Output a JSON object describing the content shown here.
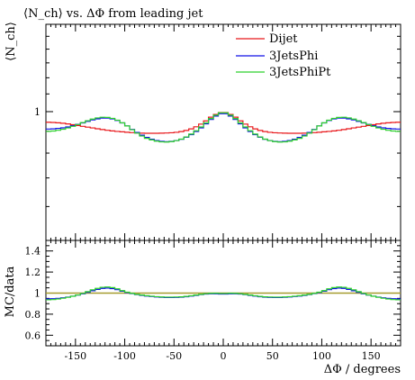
{
  "chart_data": [
    {
      "type": "line",
      "panel": "main",
      "title": "⟨N_ch⟩ vs. ΔΦ from leading jet",
      "ylabel": "⟨N_ch⟩",
      "ylim": [
        0.5,
        1.6
      ],
      "yscale": "log",
      "yticks": [
        1
      ],
      "ytick_labels": [
        "1"
      ],
      "xlim": [
        -180,
        180
      ],
      "legend_position": "top-right",
      "x": [
        -180,
        -170,
        -160,
        -150,
        -140,
        -130,
        -120,
        -110,
        -100,
        -90,
        -80,
        -70,
        -60,
        -50,
        -40,
        -30,
        -20,
        -10,
        0,
        10,
        20,
        30,
        40,
        50,
        60,
        70,
        80,
        90,
        100,
        110,
        120,
        130,
        140,
        150,
        160,
        170,
        180
      ],
      "series": [
        {
          "name": "Dijet",
          "color": "#e8171a",
          "values": [
            0.945,
            0.943,
            0.938,
            0.93,
            0.922,
            0.914,
            0.906,
            0.9,
            0.896,
            0.892,
            0.89,
            0.89,
            0.891,
            0.893,
            0.9,
            0.915,
            0.942,
            0.98,
            1.0,
            0.98,
            0.942,
            0.915,
            0.9,
            0.893,
            0.891,
            0.89,
            0.89,
            0.892,
            0.896,
            0.9,
            0.906,
            0.914,
            0.922,
            0.93,
            0.938,
            0.943,
            0.945
          ]
        },
        {
          "name": "3JetsPhi",
          "color": "#1212e8",
          "values": [
            0.91,
            0.912,
            0.918,
            0.93,
            0.945,
            0.96,
            0.968,
            0.96,
            0.935,
            0.9,
            0.875,
            0.858,
            0.85,
            0.853,
            0.865,
            0.89,
            0.925,
            0.97,
            0.995,
            0.97,
            0.925,
            0.89,
            0.865,
            0.853,
            0.85,
            0.858,
            0.875,
            0.9,
            0.935,
            0.96,
            0.968,
            0.96,
            0.945,
            0.93,
            0.918,
            0.912,
            0.91
          ]
        },
        {
          "name": "3JetsPhiPt",
          "color": "#2fd02f",
          "values": [
            0.898,
            0.902,
            0.912,
            0.928,
            0.948,
            0.965,
            0.972,
            0.962,
            0.935,
            0.898,
            0.87,
            0.855,
            0.848,
            0.852,
            0.866,
            0.893,
            0.93,
            0.975,
            1.0,
            0.975,
            0.93,
            0.893,
            0.866,
            0.852,
            0.848,
            0.855,
            0.87,
            0.898,
            0.935,
            0.962,
            0.972,
            0.965,
            0.948,
            0.928,
            0.912,
            0.902,
            0.898
          ]
        }
      ]
    },
    {
      "type": "line",
      "panel": "ratio",
      "ylabel": "MC/data",
      "xlabel": "ΔΦ / degrees",
      "ylim": [
        0.5,
        1.5
      ],
      "yticks": [
        0.6,
        0.8,
        1,
        1.2,
        1.4
      ],
      "ytick_labels": [
        "0.6",
        "0.8",
        "1",
        "1.2",
        "1.4"
      ],
      "xlim": [
        -180,
        180
      ],
      "xticks": [
        -150,
        -100,
        -50,
        0,
        50,
        100,
        150
      ],
      "xtick_labels": [
        "-150",
        "-100",
        "-50",
        "0",
        "50",
        "100",
        "150"
      ],
      "reference_line": {
        "y": 1,
        "color": "#a59b2e"
      },
      "x": [
        -180,
        -170,
        -160,
        -150,
        -140,
        -130,
        -120,
        -110,
        -100,
        -90,
        -80,
        -70,
        -60,
        -50,
        -40,
        -30,
        -20,
        -10,
        0,
        10,
        20,
        30,
        40,
        50,
        60,
        70,
        80,
        90,
        100,
        110,
        120,
        130,
        140,
        150,
        160,
        170,
        180
      ],
      "series": [
        {
          "name": "3JetsPhi",
          "color": "#1212e8",
          "values": [
            0.945,
            0.948,
            0.958,
            0.975,
            1.0,
            1.03,
            1.05,
            1.04,
            1.01,
            0.99,
            0.975,
            0.965,
            0.958,
            0.958,
            0.962,
            0.975,
            0.99,
            0.995,
            0.99,
            0.995,
            0.99,
            0.975,
            0.962,
            0.958,
            0.958,
            0.965,
            0.975,
            0.99,
            1.01,
            1.04,
            1.05,
            1.03,
            1.0,
            0.975,
            0.958,
            0.948,
            0.945
          ]
        },
        {
          "name": "3JetsPhiPt",
          "color": "#2fd02f",
          "values": [
            0.935,
            0.94,
            0.955,
            0.975,
            1.005,
            1.04,
            1.06,
            1.05,
            1.015,
            0.992,
            0.978,
            0.968,
            0.962,
            0.962,
            0.966,
            0.978,
            0.992,
            1.0,
            0.995,
            1.0,
            0.992,
            0.978,
            0.966,
            0.962,
            0.962,
            0.968,
            0.978,
            0.992,
            1.015,
            1.05,
            1.06,
            1.04,
            1.005,
            0.975,
            0.955,
            0.94,
            0.935
          ]
        }
      ]
    }
  ]
}
